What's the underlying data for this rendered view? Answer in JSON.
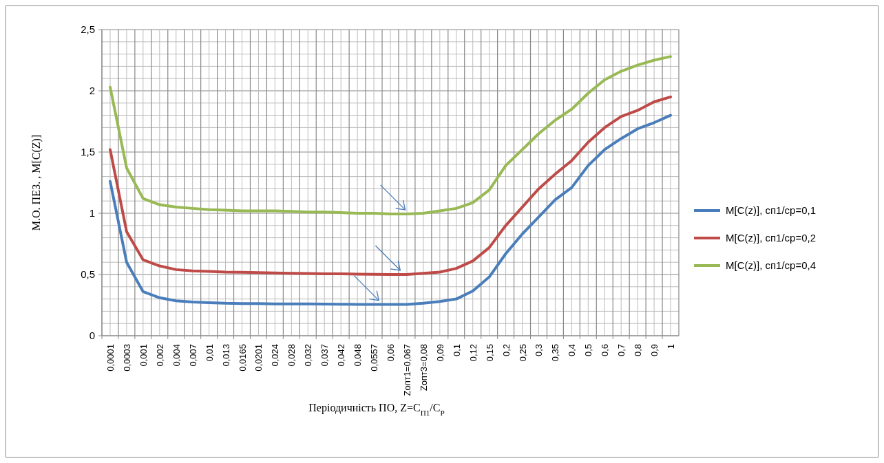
{
  "chart_data": {
    "type": "line",
    "xlabel": "Періодичність ПО, Z=C$_{П1}$/C$_{Р}$",
    "ylabel": "М.О. ПЕЗ. , M[C(Z)]",
    "categories": [
      "0,0001",
      "0,0003",
      "0,001",
      "0,002",
      "0,004",
      "0,007",
      "0,01",
      "0,013",
      "0,0165",
      "0,0201",
      "0,024",
      "0,028",
      "0,032",
      "0,037",
      "0,042",
      "0,048",
      "0,0557",
      "0,06",
      "Zопт1=0,067",
      "Zопт3=0,08",
      "0,09",
      "0,1",
      "0,12",
      "0,15",
      "0,2",
      "0,25",
      "0,3",
      "0,35",
      "0,4",
      "0,5",
      "0,6",
      "0,7",
      "0,8",
      "0,9",
      "1"
    ],
    "series": [
      {
        "name": "M[C(z)], сп1/ср=0,1",
        "color": "#4a7ebb",
        "values": [
          1.26,
          0.6,
          0.36,
          0.31,
          0.285,
          0.275,
          0.27,
          0.265,
          0.263,
          0.262,
          0.26,
          0.26,
          0.26,
          0.258,
          0.257,
          0.256,
          0.255,
          0.255,
          0.255,
          0.266,
          0.28,
          0.3,
          0.365,
          0.48,
          0.67,
          0.83,
          0.97,
          1.11,
          1.21,
          1.39,
          1.52,
          1.61,
          1.69,
          1.74,
          1.8
        ]
      },
      {
        "name": "M[C(z)], сп1/ср=0,2",
        "color": "#be4b48",
        "values": [
          1.52,
          0.85,
          0.62,
          0.57,
          0.54,
          0.53,
          0.525,
          0.52,
          0.518,
          0.515,
          0.513,
          0.51,
          0.508,
          0.506,
          0.505,
          0.503,
          0.502,
          0.5,
          0.5,
          0.51,
          0.52,
          0.55,
          0.61,
          0.72,
          0.9,
          1.05,
          1.2,
          1.32,
          1.43,
          1.58,
          1.7,
          1.79,
          1.84,
          1.91,
          1.95
        ]
      },
      {
        "name": "M[C(z)], сп1/ср=0,4",
        "color": "#98b954",
        "values": [
          2.03,
          1.37,
          1.12,
          1.07,
          1.05,
          1.04,
          1.03,
          1.025,
          1.02,
          1.02,
          1.02,
          1.015,
          1.01,
          1.01,
          1.005,
          1.0,
          1.0,
          0.995,
          0.995,
          1.0,
          1.02,
          1.04,
          1.086,
          1.19,
          1.39,
          1.52,
          1.65,
          1.76,
          1.85,
          1.98,
          2.09,
          2.16,
          2.21,
          2.25,
          2.28
        ]
      }
    ],
    "ylim": [
      0,
      2.5
    ],
    "yticks": [
      {
        "value": 0,
        "label": "0"
      },
      {
        "value": 0.5,
        "label": "0,5"
      },
      {
        "value": 1,
        "label": "1"
      },
      {
        "value": 1.5,
        "label": "1,5"
      },
      {
        "value": 2,
        "label": "2"
      },
      {
        "value": 2.5,
        "label": "2,5"
      }
    ],
    "grid": true,
    "legend": "right",
    "marker": "none",
    "line_style": "solid"
  }
}
